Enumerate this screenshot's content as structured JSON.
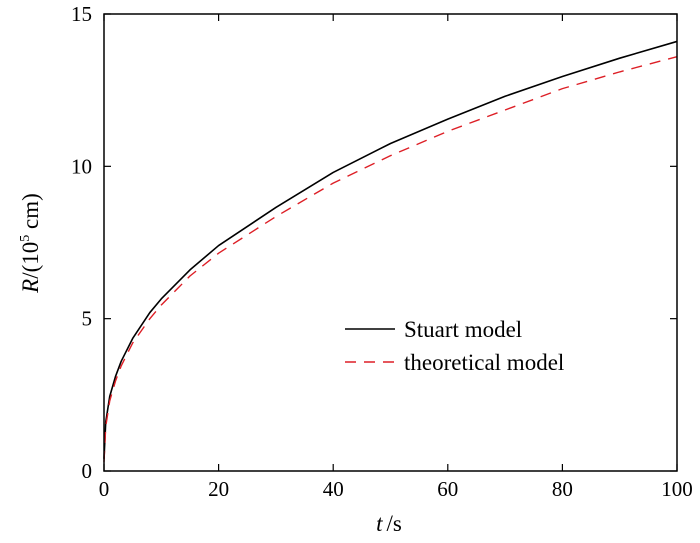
{
  "chart_data": {
    "type": "line",
    "xlabel": {
      "var": "t",
      "unit": "/s"
    },
    "ylabel": {
      "var": "R",
      "unit_prefix": "/(10",
      "unit_exp": "5",
      "unit_suffix": " cm)"
    },
    "xlim": [
      0,
      100
    ],
    "ylim": [
      0,
      15
    ],
    "xticks": [
      "0",
      "20",
      "40",
      "60",
      "80",
      "100"
    ],
    "yticks": [
      "0",
      "5",
      "10",
      "15"
    ],
    "grid": false,
    "legend_position": "lower-right",
    "series": [
      {
        "name": "Stuart model",
        "color": "#000000",
        "dash": "solid",
        "x": [
          0,
          0.3,
          1,
          2,
          3,
          5,
          8,
          10,
          15,
          20,
          30,
          40,
          50,
          60,
          70,
          80,
          90,
          100
        ],
        "y": [
          0.4,
          1.6,
          2.45,
          3.1,
          3.6,
          4.35,
          5.2,
          5.65,
          6.6,
          7.4,
          8.65,
          9.8,
          10.75,
          11.55,
          12.3,
          12.95,
          13.55,
          14.1
        ]
      },
      {
        "name": "theoretical model",
        "color": "#dd1f26",
        "dash": "dashed",
        "x": [
          0,
          0.3,
          1,
          2,
          3,
          5,
          8,
          10,
          15,
          20,
          30,
          40,
          50,
          60,
          70,
          80,
          90,
          100
        ],
        "y": [
          0.3,
          1.45,
          2.3,
          2.95,
          3.45,
          4.2,
          5.0,
          5.45,
          6.4,
          7.15,
          8.35,
          9.45,
          10.35,
          11.15,
          11.85,
          12.55,
          13.1,
          13.6
        ]
      }
    ]
  }
}
